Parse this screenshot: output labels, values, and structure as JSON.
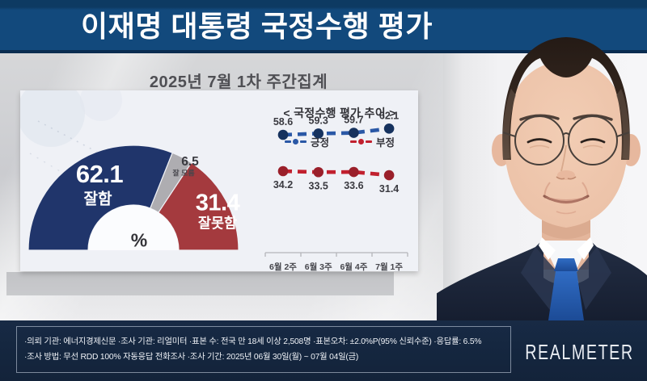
{
  "title": "이재명 대통령 국정수행 평가",
  "subtitle": "2025년 7월 1차 주간집계",
  "gauge": {
    "positive_value": "62.1",
    "positive_label": "잘함",
    "unknown_value": "6.5",
    "unknown_label": "잘 모름",
    "negative_value": "31.4",
    "negative_label": "잘못함",
    "unit": "%"
  },
  "trend": {
    "title": "< 국정수행 평가 추이 >",
    "legend": [
      {
        "label": "긍정",
        "color": "#2a58a6"
      },
      {
        "label": "부정",
        "color": "#c1202e"
      }
    ]
  },
  "chart_data": [
    {
      "type": "pie",
      "subtype": "semi-donut",
      "title": "이재명 대통령 국정수행 평가 (2025년 7월 1차 주간집계)",
      "categories": [
        "잘함",
        "잘 모름",
        "잘못함"
      ],
      "values": [
        62.1,
        6.5,
        31.4
      ],
      "colors": [
        "#20356b",
        "#aeadb1",
        "#a43a3e"
      ],
      "unit": "%"
    },
    {
      "type": "line",
      "title": "국정수행 평가 추이",
      "categories": [
        "6월 2주",
        "6월 3주",
        "6월 4주",
        "7월 1주"
      ],
      "series": [
        {
          "name": "긍정",
          "values": [
            58.6,
            59.3,
            59.7,
            62.1
          ],
          "color": "#2a58a6",
          "dot_color": "#16325e"
        },
        {
          "name": "부정",
          "values": [
            34.2,
            33.5,
            33.6,
            31.4
          ],
          "color": "#c1202e",
          "dot_color": "#9a1f2a"
        }
      ],
      "legend_position": "top",
      "grid": false
    }
  ],
  "footer": {
    "line1": "·의뢰 기관: 에너지경제신문 ·조사 기관: 리얼미터 ·표본 수: 전국 만 18세 이상 2,508명 ·표본오차: ±2.0%P(95% 신뢰수준) ·응답률: 6.5%",
    "line2": "·조사 방법: 무선 RDD 100% 자동응답 전화조사 ·조사 기간: 2025년 06월 30일(월) ~ 07월 04일(금)",
    "logo": "REALMETER"
  }
}
